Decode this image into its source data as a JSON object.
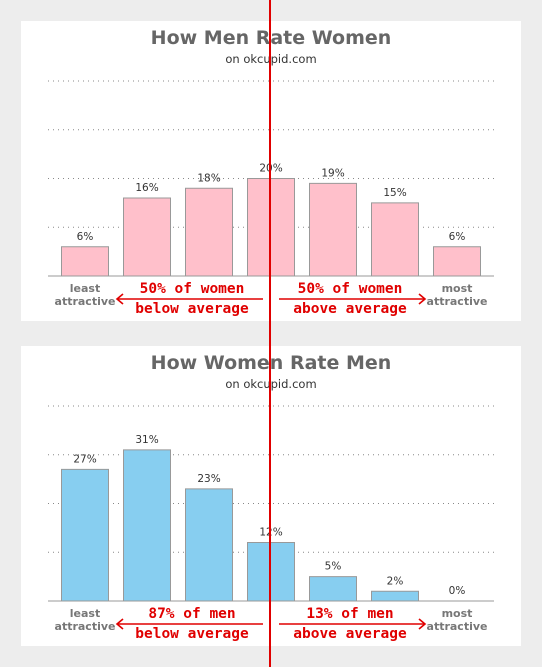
{
  "chart_data": [
    {
      "type": "bar",
      "title": "How Men Rate Women",
      "subtitle": "on okcupid.com",
      "categories": [
        "least attractive",
        "",
        "",
        "",
        "",
        "",
        "most attractive"
      ],
      "category_lines": [
        [
          "least",
          "attractive"
        ],
        [],
        [],
        [],
        [],
        [],
        [
          "most",
          "attractive"
        ]
      ],
      "values": [
        6,
        16,
        18,
        20,
        19,
        15,
        6
      ],
      "value_labels": [
        "6%",
        "16%",
        "18%",
        "20%",
        "19%",
        "15%",
        "6%"
      ],
      "ylim": [
        0,
        40
      ],
      "grid": true,
      "bar_color": "#ffc0cb",
      "annotations": {
        "left_lines": [
          "50% of women",
          "below average"
        ],
        "right_lines": [
          "50% of women",
          "above average"
        ]
      }
    },
    {
      "type": "bar",
      "title": "How Women Rate Men",
      "subtitle": "on okcupid.com",
      "categories": [
        "least attractive",
        "",
        "",
        "",
        "",
        "",
        "most attractive"
      ],
      "category_lines": [
        [
          "least",
          "attractive"
        ],
        [],
        [],
        [],
        [],
        [],
        [
          "most",
          "attractive"
        ]
      ],
      "values": [
        27,
        31,
        23,
        12,
        5,
        2,
        0
      ],
      "value_labels": [
        "27%",
        "31%",
        "23%",
        "12%",
        "5%",
        "2%",
        "0%"
      ],
      "ylim": [
        0,
        40
      ],
      "grid": true,
      "bar_color": "#87cef0",
      "annotations": {
        "left_lines": [
          "87% of men",
          "below average"
        ],
        "right_lines": [
          "13% of men",
          "above average"
        ]
      }
    }
  ],
  "colors": {
    "title": "#666666",
    "annotation": "#e00000",
    "divider": "#e00000",
    "bar_stroke": "#999999",
    "grid": "#888888"
  }
}
